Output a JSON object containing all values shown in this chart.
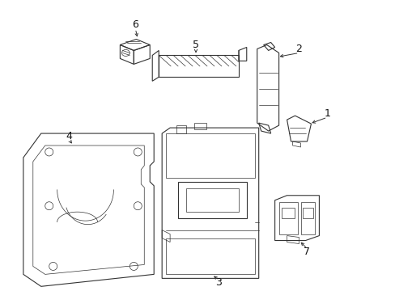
{
  "background_color": "#ffffff",
  "line_color": "#333333",
  "label_color": "#111111",
  "fig_width": 4.89,
  "fig_height": 3.6,
  "dpi": 100
}
